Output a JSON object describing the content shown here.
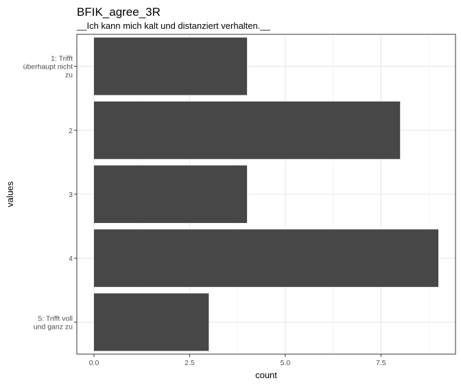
{
  "chart_data": {
    "type": "bar",
    "orientation": "horizontal",
    "title": "BFIK_agree_3R",
    "subtitle": "__Ich kann mich kalt und distanziert verhalten.__",
    "xlabel": "count",
    "ylabel": "values",
    "categories": [
      [
        "1: Trifft",
        "überhaupt nicht",
        "zu"
      ],
      [
        "2"
      ],
      [
        "3"
      ],
      [
        "4"
      ],
      [
        "5: Trifft voll",
        "und ganz zu"
      ]
    ],
    "values": [
      4,
      8,
      4,
      9,
      3
    ],
    "xlim": [
      0,
      9
    ],
    "xticks": [
      0,
      2.5,
      5,
      7.5
    ],
    "xtick_labels": [
      "0.0",
      "2.5",
      "5.0",
      "7.5"
    ],
    "grid": true,
    "colors": {
      "bar": "#474747",
      "grid_major": "#e6e6e6",
      "grid_minor": "#f2f2f2",
      "panel_border": "#333333",
      "tick_text": "#4d4d4d"
    }
  }
}
